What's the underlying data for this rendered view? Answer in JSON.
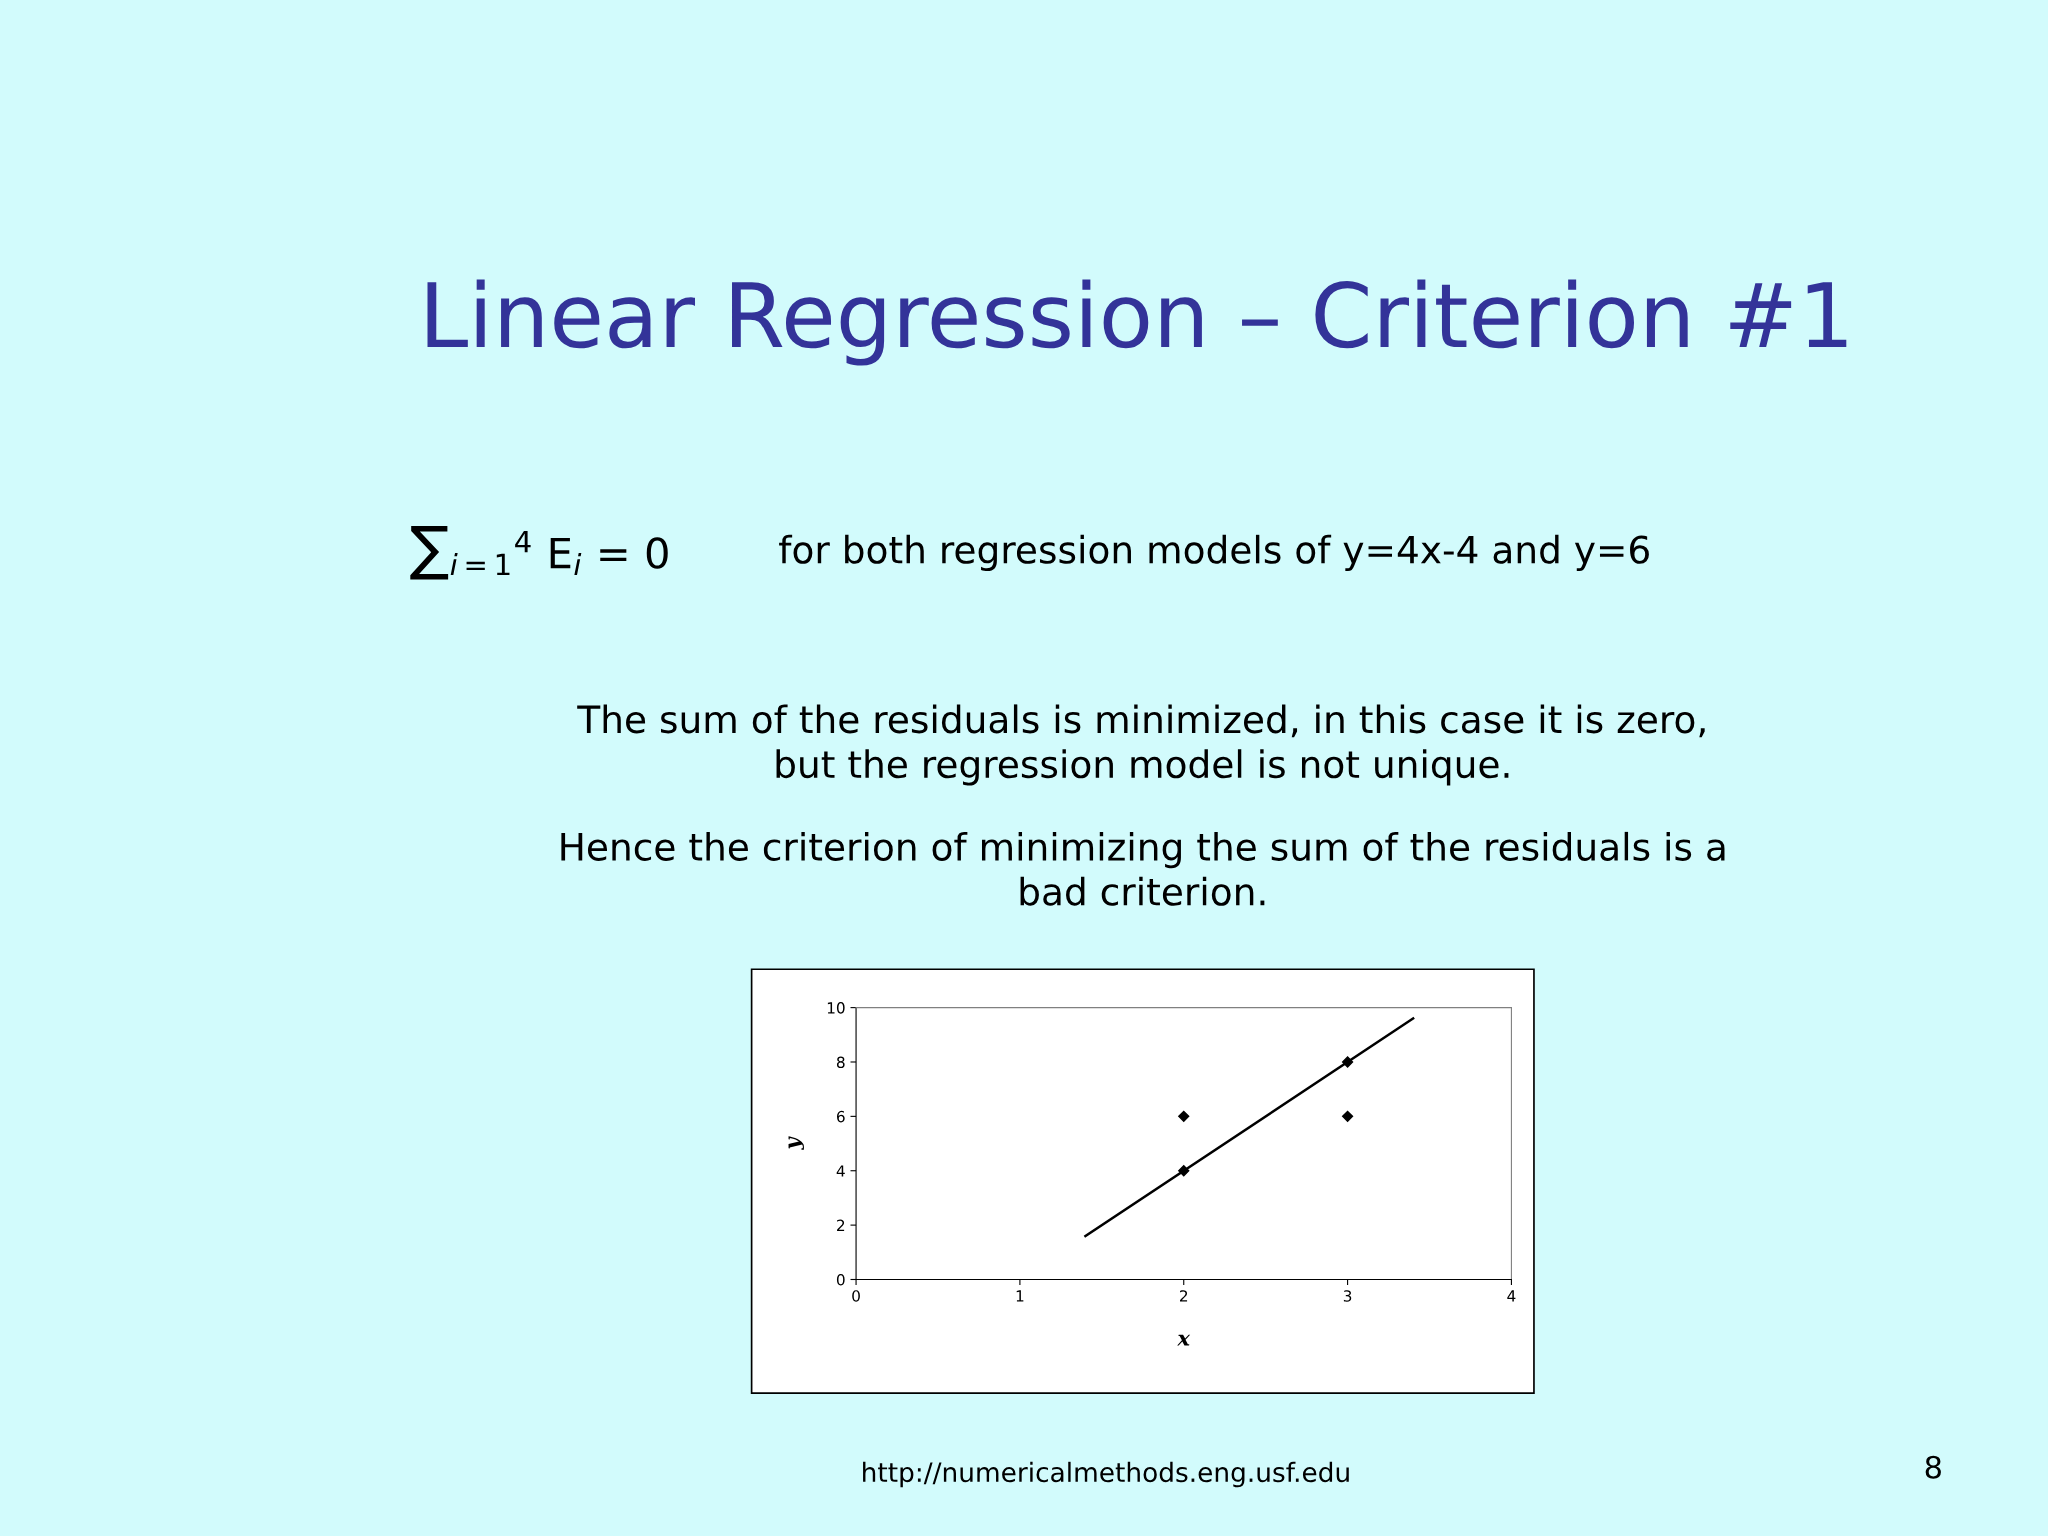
{
  "chart_data": {
    "type": "scatter",
    "title": "Linear Regression – Criterion #1",
    "xlabel": "x",
    "ylabel": "y",
    "annotations": [
      "∑$_{i=1}$$^{4}$ E$_{i}$ = 0",
      "for both regression models of y=4x-4 and y=6",
      "The sum of the residuals is minimized, in this case it is zero,\nbut the regression model is not unique.",
      "Hence the criterion of minimizing the sum of the residuals is a\nbad criterion.",
      "http://numericalmethods.eng.usf.edu",
      "8"
    ],
    "series": [
      {
        "color": "#000000",
        "x": [
          2,
          2,
          3,
          3
        ],
        "values": [
          4,
          6,
          8,
          6
        ]
      },
      {
        "type": "line",
        "marker": "none",
        "color": "#000000",
        "x": [
          1.4,
          3.4
        ],
        "values": [
          1.6,
          9.6
        ]
      }
    ],
    "marker": "diamond",
    "xlim": [
      0,
      4
    ],
    "xticks": [
      0,
      1,
      2,
      3,
      4
    ],
    "ylim": [
      0,
      10
    ],
    "yticks": [
      0,
      2,
      4,
      6,
      8,
      10
    ],
    "grid": false,
    "legend": false
  }
}
